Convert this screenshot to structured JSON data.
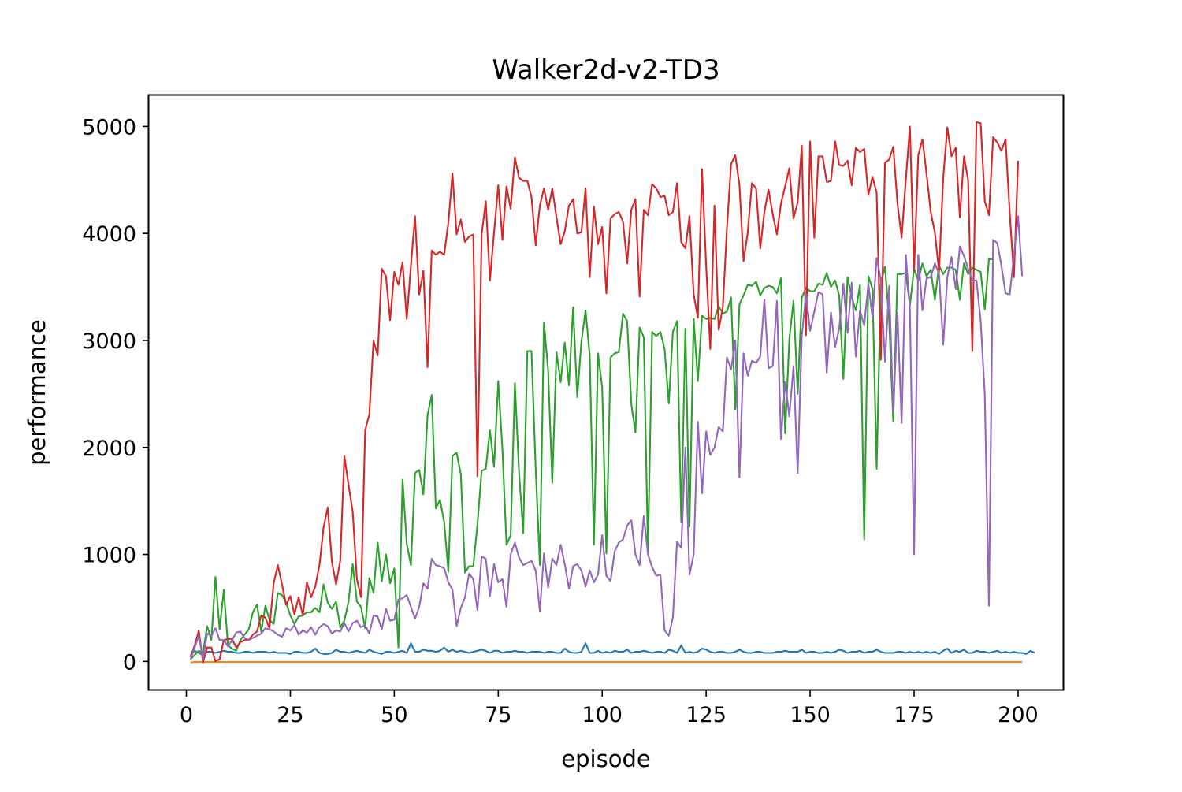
{
  "chart_data": {
    "type": "line",
    "title": "Walker2d-v2-TD3",
    "xlabel": "episode",
    "ylabel": "performance",
    "xlim": [
      -9.0,
      211.0
    ],
    "ylim": [
      -270,
      5290
    ],
    "xticks": [
      0,
      25,
      50,
      75,
      100,
      125,
      150,
      175,
      200
    ],
    "yticks": [
      0,
      1000,
      2000,
      3000,
      4000,
      5000
    ],
    "grid": false,
    "legend": "none",
    "x_start": 1,
    "x_step": 1,
    "series": [
      {
        "color": "#1f77b4",
        "values": [
          60,
          100,
          80,
          60,
          90,
          90,
          80,
          90,
          100,
          90,
          90,
          80,
          80,
          90,
          90,
          80,
          90,
          90,
          90,
          80,
          90,
          80,
          80,
          80,
          70,
          90,
          90,
          80,
          80,
          90,
          120,
          80,
          70,
          70,
          80,
          110,
          90,
          90,
          80,
          90,
          100,
          90,
          80,
          110,
          90,
          80,
          70,
          90,
          90,
          80,
          90,
          100,
          80,
          170,
          90,
          90,
          110,
          100,
          100,
          90,
          100,
          130,
          90,
          110,
          90,
          100,
          90,
          80,
          90,
          100,
          110,
          100,
          80,
          100,
          100,
          80,
          90,
          90,
          100,
          90,
          90,
          80,
          90,
          90,
          90,
          80,
          90,
          90,
          80,
          80,
          120,
          90,
          80,
          80,
          90,
          170,
          80,
          80,
          100,
          80,
          90,
          80,
          100,
          90,
          90,
          110,
          80,
          90,
          90,
          100,
          90,
          80,
          90,
          90,
          80,
          110,
          100,
          80,
          150,
          80,
          90,
          80,
          90,
          120,
          110,
          90,
          80,
          90,
          90,
          80,
          80,
          90,
          110,
          90,
          80,
          80,
          90,
          90,
          80,
          80,
          80,
          90,
          90,
          100,
          90,
          90,
          90,
          110,
          80,
          90,
          90,
          80,
          80,
          90,
          80,
          90,
          110,
          100,
          80,
          90,
          90,
          100,
          80,
          90,
          90,
          110,
          90,
          80,
          80,
          80,
          90,
          90,
          80,
          90,
          80,
          90,
          80,
          90,
          80,
          90,
          70,
          100,
          120,
          80,
          100,
          90,
          110,
          80,
          80,
          100,
          90,
          90,
          80,
          90,
          100,
          80,
          90,
          80,
          90,
          80,
          80,
          70,
          100,
          80
        ]
      },
      {
        "color": "#ff7f0e",
        "values": [
          -10,
          -5,
          -5,
          -5,
          -5,
          -5,
          -5,
          -5,
          -5,
          -5,
          -5,
          -5,
          -5,
          -5,
          -5,
          -5,
          -5,
          -5,
          -5,
          -5,
          -5,
          -5,
          -5,
          -5,
          -5,
          -5,
          -5,
          -5,
          -5,
          -5,
          -5,
          -5,
          -5,
          -5,
          -5,
          -5,
          -5,
          -5,
          -5,
          -5,
          -5,
          -5,
          -5,
          -5,
          -5,
          -5,
          -5,
          -5,
          -5,
          -5,
          -5,
          -5,
          -5,
          -5,
          -5,
          -5,
          -5,
          -5,
          -5,
          -5,
          -5,
          -5,
          -5,
          -5,
          -5,
          -5,
          -5,
          -5,
          -5,
          -5,
          -5,
          -5,
          -5,
          -5,
          -5,
          -5,
          -5,
          -5,
          -5,
          -5,
          -5,
          -5,
          -5,
          -5,
          -5,
          -5,
          -5,
          -5,
          -5,
          -5,
          -5,
          -5,
          -5,
          -5,
          -5,
          -5,
          -5,
          -5,
          -5,
          -5,
          -5,
          -5,
          -5,
          -5,
          -5,
          -5,
          -5,
          -5,
          -5,
          -5,
          -5,
          -5,
          -5,
          -5,
          -5,
          -5,
          -5,
          -5,
          -5,
          -5,
          -5,
          -5,
          -5,
          -5,
          -5,
          -5,
          -5,
          -5,
          -5,
          -5,
          -5,
          -5,
          -5,
          -5,
          -5,
          -5,
          -5,
          -5,
          -5,
          -5,
          -5,
          -5,
          -5,
          -5,
          -5,
          -5,
          -5,
          -5,
          -5,
          -5,
          -5,
          -5,
          -5,
          -5,
          -5,
          -5,
          -5,
          -5,
          -5,
          -5,
          -5,
          -5,
          -5,
          -5,
          -5,
          -5,
          -5,
          -5,
          -5,
          -5,
          -5,
          -5,
          -5,
          -5,
          -5,
          -5,
          -5,
          -5,
          -5,
          -5,
          -5,
          -5,
          -5,
          -5,
          -5,
          -5,
          -5,
          -5,
          -5,
          -5,
          -5,
          -5,
          -5,
          -5,
          -5,
          -5,
          -5,
          -5,
          -5,
          -5,
          -5
        ]
      },
      {
        "color": "#2ca02c",
        "values": [
          20,
          60,
          100,
          80,
          330,
          200,
          790,
          300,
          670,
          150,
          120,
          100,
          200,
          250,
          300,
          460,
          530,
          280,
          520,
          390,
          350,
          640,
          620,
          550,
          430,
          350,
          420,
          430,
          460,
          460,
          500,
          460,
          720,
          550,
          490,
          560,
          320,
          380,
          560,
          910,
          560,
          510,
          310,
          780,
          640,
          1110,
          750,
          1000,
          730,
          870,
          130,
          1700,
          1100,
          900,
          1760,
          1790,
          1560,
          2300,
          2490,
          1430,
          1510,
          1300,
          840,
          1920,
          1950,
          1750,
          830,
          890,
          890,
          1280,
          1780,
          1800,
          2160,
          1820,
          2620,
          1980,
          1090,
          1180,
          2600,
          1770,
          1200,
          2900,
          2900,
          1800,
          900,
          3170,
          2720,
          1670,
          2890,
          2610,
          2980,
          2580,
          3310,
          2470,
          2990,
          3280,
          2860,
          1090,
          2880,
          2560,
          1010,
          2840,
          2880,
          2890,
          3250,
          3180,
          2400,
          2140,
          3120,
          3030,
          1010,
          3080,
          3040,
          3080,
          2920,
          2410,
          3080,
          3180,
          1300,
          3110,
          1260,
          3200,
          2620,
          3230,
          3200,
          3210,
          3200,
          3320,
          3250,
          3270,
          3400,
          2360,
          3340,
          3420,
          3520,
          3510,
          3550,
          3420,
          3490,
          3510,
          3500,
          3440,
          3580,
          2130,
          3010,
          3370,
          2500,
          3400,
          3490,
          3460,
          3460,
          3530,
          3520,
          3630,
          3500,
          3560,
          3420,
          2640,
          3590,
          3400,
          3280,
          3520,
          1140,
          3600,
          3480,
          1800,
          3530,
          3690,
          3180,
          2240,
          3620,
          3620,
          3630,
          3330,
          3670,
          3560,
          3720,
          3600,
          3660,
          3380,
          3700,
          3620,
          3680,
          3680,
          3660,
          3380,
          3720,
          3620,
          3680,
          3660,
          3640,
          3290,
          3760,
          3760
        ]
      },
      {
        "color": "#d62728",
        "values": [
          40,
          150,
          290,
          -10,
          130,
          130,
          0,
          20,
          200,
          210,
          210,
          130,
          180,
          200,
          200,
          250,
          280,
          430,
          410,
          310,
          730,
          900,
          720,
          530,
          610,
          440,
          600,
          430,
          740,
          600,
          700,
          900,
          1250,
          1440,
          930,
          720,
          940,
          1920,
          1650,
          1400,
          770,
          600,
          2160,
          2310,
          3000,
          2860,
          3670,
          3600,
          3190,
          3640,
          3520,
          3730,
          3200,
          3700,
          4160,
          3430,
          3650,
          2750,
          3840,
          3800,
          3830,
          3800,
          4100,
          4560,
          3990,
          4130,
          3920,
          3970,
          3990,
          1730,
          3990,
          4300,
          3560,
          4010,
          4450,
          3940,
          4440,
          4230,
          4710,
          4520,
          4490,
          4490,
          4340,
          3890,
          4260,
          4420,
          4220,
          4420,
          4150,
          3900,
          4020,
          4260,
          4320,
          4000,
          4010,
          4420,
          3590,
          4250,
          3900,
          4060,
          3440,
          4140,
          4180,
          4200,
          4110,
          3720,
          4220,
          4320,
          3410,
          4220,
          4170,
          4460,
          4420,
          4340,
          4350,
          4170,
          4200,
          4470,
          3920,
          3860,
          4160,
          3430,
          3210,
          4600,
          3690,
          2920,
          4260,
          3100,
          3310,
          4050,
          4650,
          4730,
          4450,
          3740,
          4010,
          4470,
          4420,
          3860,
          4200,
          4410,
          4180,
          3990,
          4280,
          4440,
          4610,
          4140,
          4290,
          4820,
          3050,
          4860,
          3960,
          4720,
          4720,
          4480,
          4490,
          4860,
          4640,
          4630,
          4680,
          4450,
          4800,
          4760,
          4790,
          4360,
          4530,
          4380,
          2820,
          4660,
          4690,
          4810,
          4280,
          3960,
          4500,
          5000,
          3650,
          4730,
          4880,
          4560,
          4200,
          4010,
          3640,
          4520,
          4990,
          4720,
          4800,
          4150,
          4720,
          4500,
          2900,
          5040,
          5030,
          4300,
          4170,
          4900,
          4850,
          4770,
          4880,
          4190,
          3590,
          4680
        ]
      },
      {
        "color": "#9467bd",
        "values": [
          20,
          130,
          240,
          20,
          260,
          240,
          310,
          200,
          200,
          140,
          200,
          270,
          280,
          220,
          200,
          220,
          240,
          260,
          310,
          300,
          280,
          250,
          230,
          310,
          290,
          340,
          250,
          290,
          270,
          320,
          250,
          320,
          350,
          330,
          260,
          290,
          280,
          360,
          280,
          360,
          380,
          320,
          340,
          260,
          430,
          420,
          300,
          490,
          380,
          390,
          580,
          590,
          620,
          510,
          400,
          510,
          730,
          680,
          960,
          900,
          890,
          870,
          740,
          670,
          330,
          500,
          600,
          820,
          770,
          480,
          980,
          960,
          610,
          910,
          740,
          770,
          510,
          1000,
          1110,
          970,
          900,
          920,
          940,
          850,
          470,
          1010,
          690,
          960,
          900,
          1090,
          910,
          680,
          890,
          910,
          850,
          700,
          850,
          740,
          810,
          1180,
          800,
          750,
          1030,
          1110,
          1140,
          1270,
          1320,
          1000,
          900,
          1360,
          1000,
          880,
          800,
          810,
          290,
          240,
          410,
          1120,
          1060,
          2000,
          810,
          1000,
          2240,
          1570,
          2150,
          1930,
          2000,
          2190,
          2150,
          2840,
          2730,
          3000,
          1720,
          2880,
          2670,
          2810,
          2790,
          2850,
          3380,
          2740,
          2760,
          3370,
          2080,
          2610,
          2290,
          2760,
          1760,
          3040,
          3430,
          3090,
          3270,
          3450,
          3430,
          2700,
          3260,
          2940,
          3110,
          3530,
          3070,
          3540,
          2850,
          3280,
          3140,
          3530,
          3210,
          3770,
          3570,
          2800,
          3510,
          2330,
          3260,
          2230,
          3800,
          3300,
          1000,
          3800,
          3280,
          3580,
          3590,
          3720,
          3620,
          2960,
          3590,
          3780,
          3480,
          3880,
          3790,
          3670,
          3560,
          3560,
          3180,
          2500,
          520,
          3940,
          3910,
          3700,
          3440,
          3430,
          3800,
          4160,
          3600
        ]
      }
    ]
  }
}
